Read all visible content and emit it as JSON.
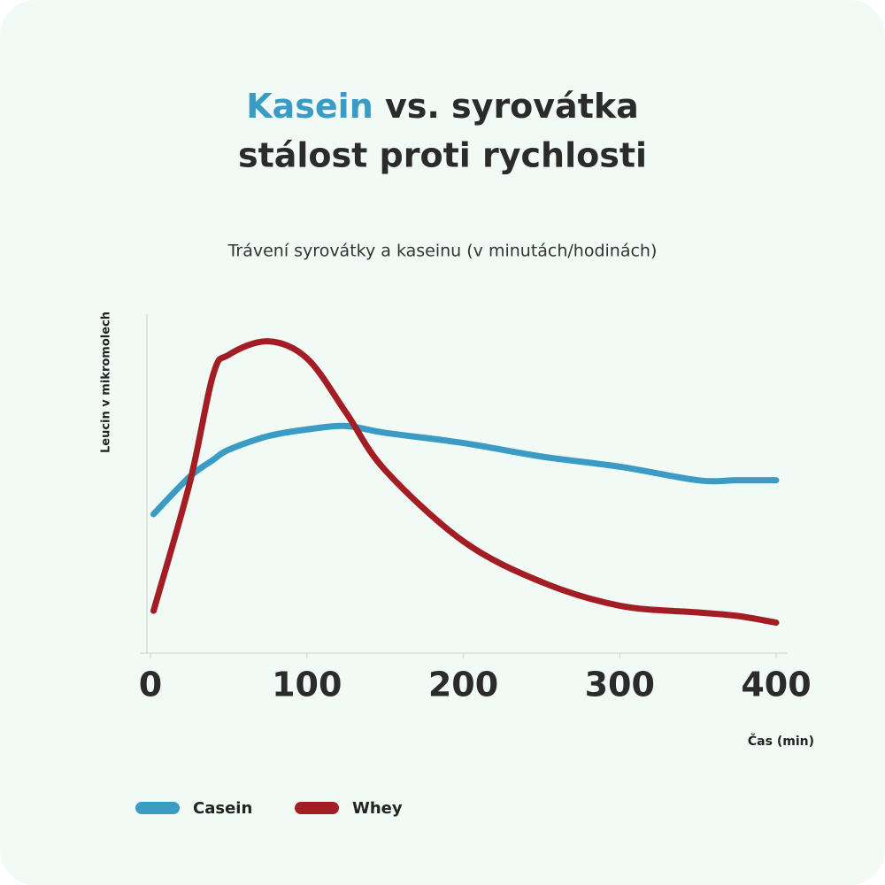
{
  "chart_data": {
    "type": "line",
    "title": [
      "Kasein",
      "vs. syrovátka",
      "stálost proti rychlosti"
    ],
    "title_accent_color": "#3a9cc4",
    "subtitle": "Trávení syrovátky a kaseinu (v minutách/hodinách)",
    "y_label": "Leucin v mikromolech",
    "x_label": "Čas (min)",
    "x": [
      2,
      25,
      40,
      50,
      75,
      100,
      125,
      150,
      200,
      250,
      300,
      350,
      375,
      400
    ],
    "xlim": [
      0,
      400
    ],
    "xticks": [
      0,
      100,
      200,
      300,
      400
    ],
    "ylim": [
      0,
      100
    ],
    "series": [
      {
        "name": "Casein",
        "color": "#3a9cc4",
        "values": [
          41,
          52,
          57,
          60,
          64,
          66,
          67,
          65,
          62,
          58,
          55,
          51,
          51,
          51
        ]
      },
      {
        "name": "Whey",
        "color": "#a31d24",
        "values": [
          12.5,
          50,
          82,
          88,
          92,
          87,
          71,
          54,
          33,
          21,
          14,
          12,
          11,
          9
        ]
      }
    ]
  }
}
